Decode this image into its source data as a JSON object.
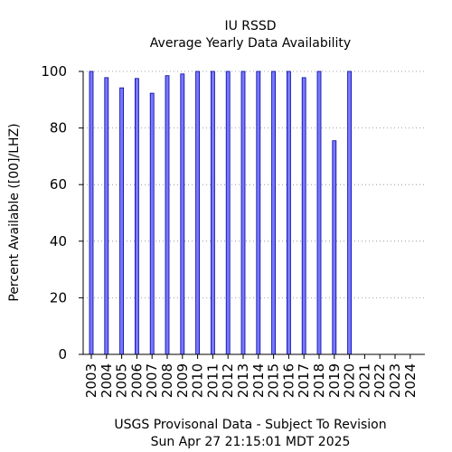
{
  "chart_data": {
    "type": "bar",
    "title": "IU RSSD",
    "subtitle": "Average Yearly Data Availability",
    "ylabel": "Percent Available ([00]/LHZ)",
    "xlabel": "",
    "ylim": [
      0,
      100
    ],
    "yticks": [
      0,
      20,
      40,
      60,
      80,
      100
    ],
    "grid": "horizontal dotted",
    "categories": [
      "2003",
      "2004",
      "2005",
      "2006",
      "2007",
      "2008",
      "2009",
      "2010",
      "2011",
      "2012",
      "2013",
      "2014",
      "2015",
      "2016",
      "2017",
      "2018",
      "2019",
      "2020",
      "2021",
      "2022",
      "2023",
      "2024"
    ],
    "values": [
      100,
      97.8,
      94.2,
      97.5,
      92.3,
      98.5,
      99.1,
      100,
      100,
      100,
      100,
      100,
      100,
      100,
      97.8,
      100,
      75.5,
      100,
      0,
      0,
      0,
      0
    ],
    "bar_color": "#7878ff",
    "bar_edge_color": "#0000a0"
  },
  "footer": {
    "line1": "USGS Provisonal Data - Subject To Revision",
    "line2": "Sun Apr 27 21:15:01 MDT 2025"
  }
}
